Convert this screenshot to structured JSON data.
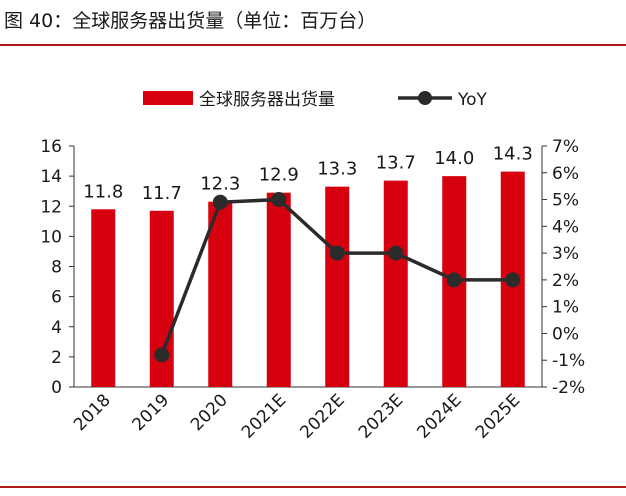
{
  "header": {
    "title": "图 40：全球服务器出货量（单位：百万台）"
  },
  "chart_data": {
    "type": "bar+line",
    "categories": [
      "2018",
      "2019",
      "2020",
      "2021E",
      "2022E",
      "2023E",
      "2024E",
      "2025E"
    ],
    "series": [
      {
        "name": "全球服务器出货量",
        "type": "bar",
        "axis": "left",
        "values": [
          11.8,
          11.7,
          12.3,
          12.9,
          13.3,
          13.7,
          14.0,
          14.3
        ],
        "labels": [
          "11.8",
          "11.7",
          "12.3",
          "12.9",
          "13.3",
          "13.7",
          "14.0",
          "14.3"
        ]
      },
      {
        "name": "YoY",
        "type": "line",
        "axis": "right",
        "values": [
          null,
          -0.8,
          4.9,
          5.0,
          3.0,
          3.0,
          2.0,
          2.0
        ]
      }
    ],
    "y_left": {
      "min": 0,
      "max": 16,
      "ticks": [
        "0",
        "2",
        "4",
        "6",
        "8",
        "10",
        "12",
        "14",
        "16"
      ]
    },
    "y_right": {
      "min": -2,
      "max": 7,
      "ticks": [
        "-2%",
        "-1%",
        "0%",
        "1%",
        "2%",
        "3%",
        "4%",
        "5%",
        "6%",
        "7%"
      ]
    },
    "legend": {
      "position": "top",
      "items": [
        "全球服务器出货量",
        "YoY"
      ]
    },
    "colors": {
      "bar": "#d7000f",
      "line": "#2b2b2b",
      "rule": "#b31b1b"
    }
  }
}
